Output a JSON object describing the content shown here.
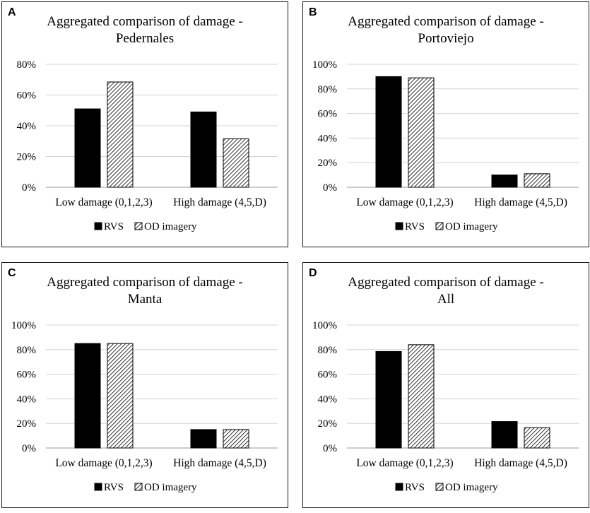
{
  "chart_data": [
    {
      "panel": "A",
      "type": "bar",
      "title": "Aggregated comparison of damage - Pedernales",
      "title_lines": [
        "Aggregated comparison of damage -",
        "Pedernales"
      ],
      "categories": [
        "Low damage (0,1,2,3)",
        "High damage (4,5,D)"
      ],
      "series": [
        {
          "name": "RVS",
          "values": [
            51,
            49
          ]
        },
        {
          "name": "OD imagery",
          "values": [
            68.5,
            31.5
          ]
        }
      ],
      "ylim": [
        0,
        80
      ],
      "yticks": [
        0,
        20,
        40,
        60,
        80
      ],
      "ytick_labels": [
        "0%",
        "20%",
        "40%",
        "60%",
        "80%"
      ],
      "xlabel": "",
      "ylabel": "",
      "legend": "bottom"
    },
    {
      "panel": "B",
      "type": "bar",
      "title": "Aggregated comparison of damage - Portoviejo",
      "title_lines": [
        "Aggregated comparison of damage -",
        "Portoviejo"
      ],
      "categories": [
        "Low damage (0,1,2,3)",
        "High damage (4,5,D)"
      ],
      "series": [
        {
          "name": "RVS",
          "values": [
            90,
            10
          ]
        },
        {
          "name": "OD imagery",
          "values": [
            89,
            11
          ]
        }
      ],
      "ylim": [
        0,
        100
      ],
      "yticks": [
        0,
        20,
        40,
        60,
        80,
        100
      ],
      "ytick_labels": [
        "0%",
        "20%",
        "40%",
        "60%",
        "80%",
        "100%"
      ],
      "xlabel": "",
      "ylabel": "",
      "legend": "bottom"
    },
    {
      "panel": "C",
      "type": "bar",
      "title": "Aggregated comparison of damage - Manta",
      "title_lines": [
        "Aggregated comparison of damage -",
        "Manta"
      ],
      "categories": [
        "Low damage (0,1,2,3)",
        "High damage (4,5,D)"
      ],
      "series": [
        {
          "name": "RVS",
          "values": [
            85,
            15
          ]
        },
        {
          "name": "OD imagery",
          "values": [
            85,
            15
          ]
        }
      ],
      "ylim": [
        0,
        100
      ],
      "yticks": [
        0,
        20,
        40,
        60,
        80,
        100
      ],
      "ytick_labels": [
        "0%",
        "20%",
        "40%",
        "60%",
        "80%",
        "100%"
      ],
      "xlabel": "",
      "ylabel": "",
      "legend": "bottom"
    },
    {
      "panel": "D",
      "type": "bar",
      "title": "Aggregated comparison of damage - All",
      "title_lines": [
        "Aggregated comparison of damage -",
        "All"
      ],
      "categories": [
        "Low damage (0,1,2,3)",
        "High damage (4,5,D)"
      ],
      "series": [
        {
          "name": "RVS",
          "values": [
            78.5,
            21.5
          ]
        },
        {
          "name": "OD imagery",
          "values": [
            84,
            16.5
          ]
        }
      ],
      "ylim": [
        0,
        100
      ],
      "yticks": [
        0,
        20,
        40,
        60,
        80,
        100
      ],
      "ytick_labels": [
        "0%",
        "20%",
        "40%",
        "60%",
        "80%",
        "100%"
      ],
      "xlabel": "",
      "ylabel": "",
      "legend": "bottom"
    }
  ],
  "colors": {
    "rvs_fill": "#000000",
    "od_hatch": "#000000",
    "od_bg": "#ffffff",
    "gridline": "#d4d4d4",
    "axis": "#9a9a9a"
  }
}
